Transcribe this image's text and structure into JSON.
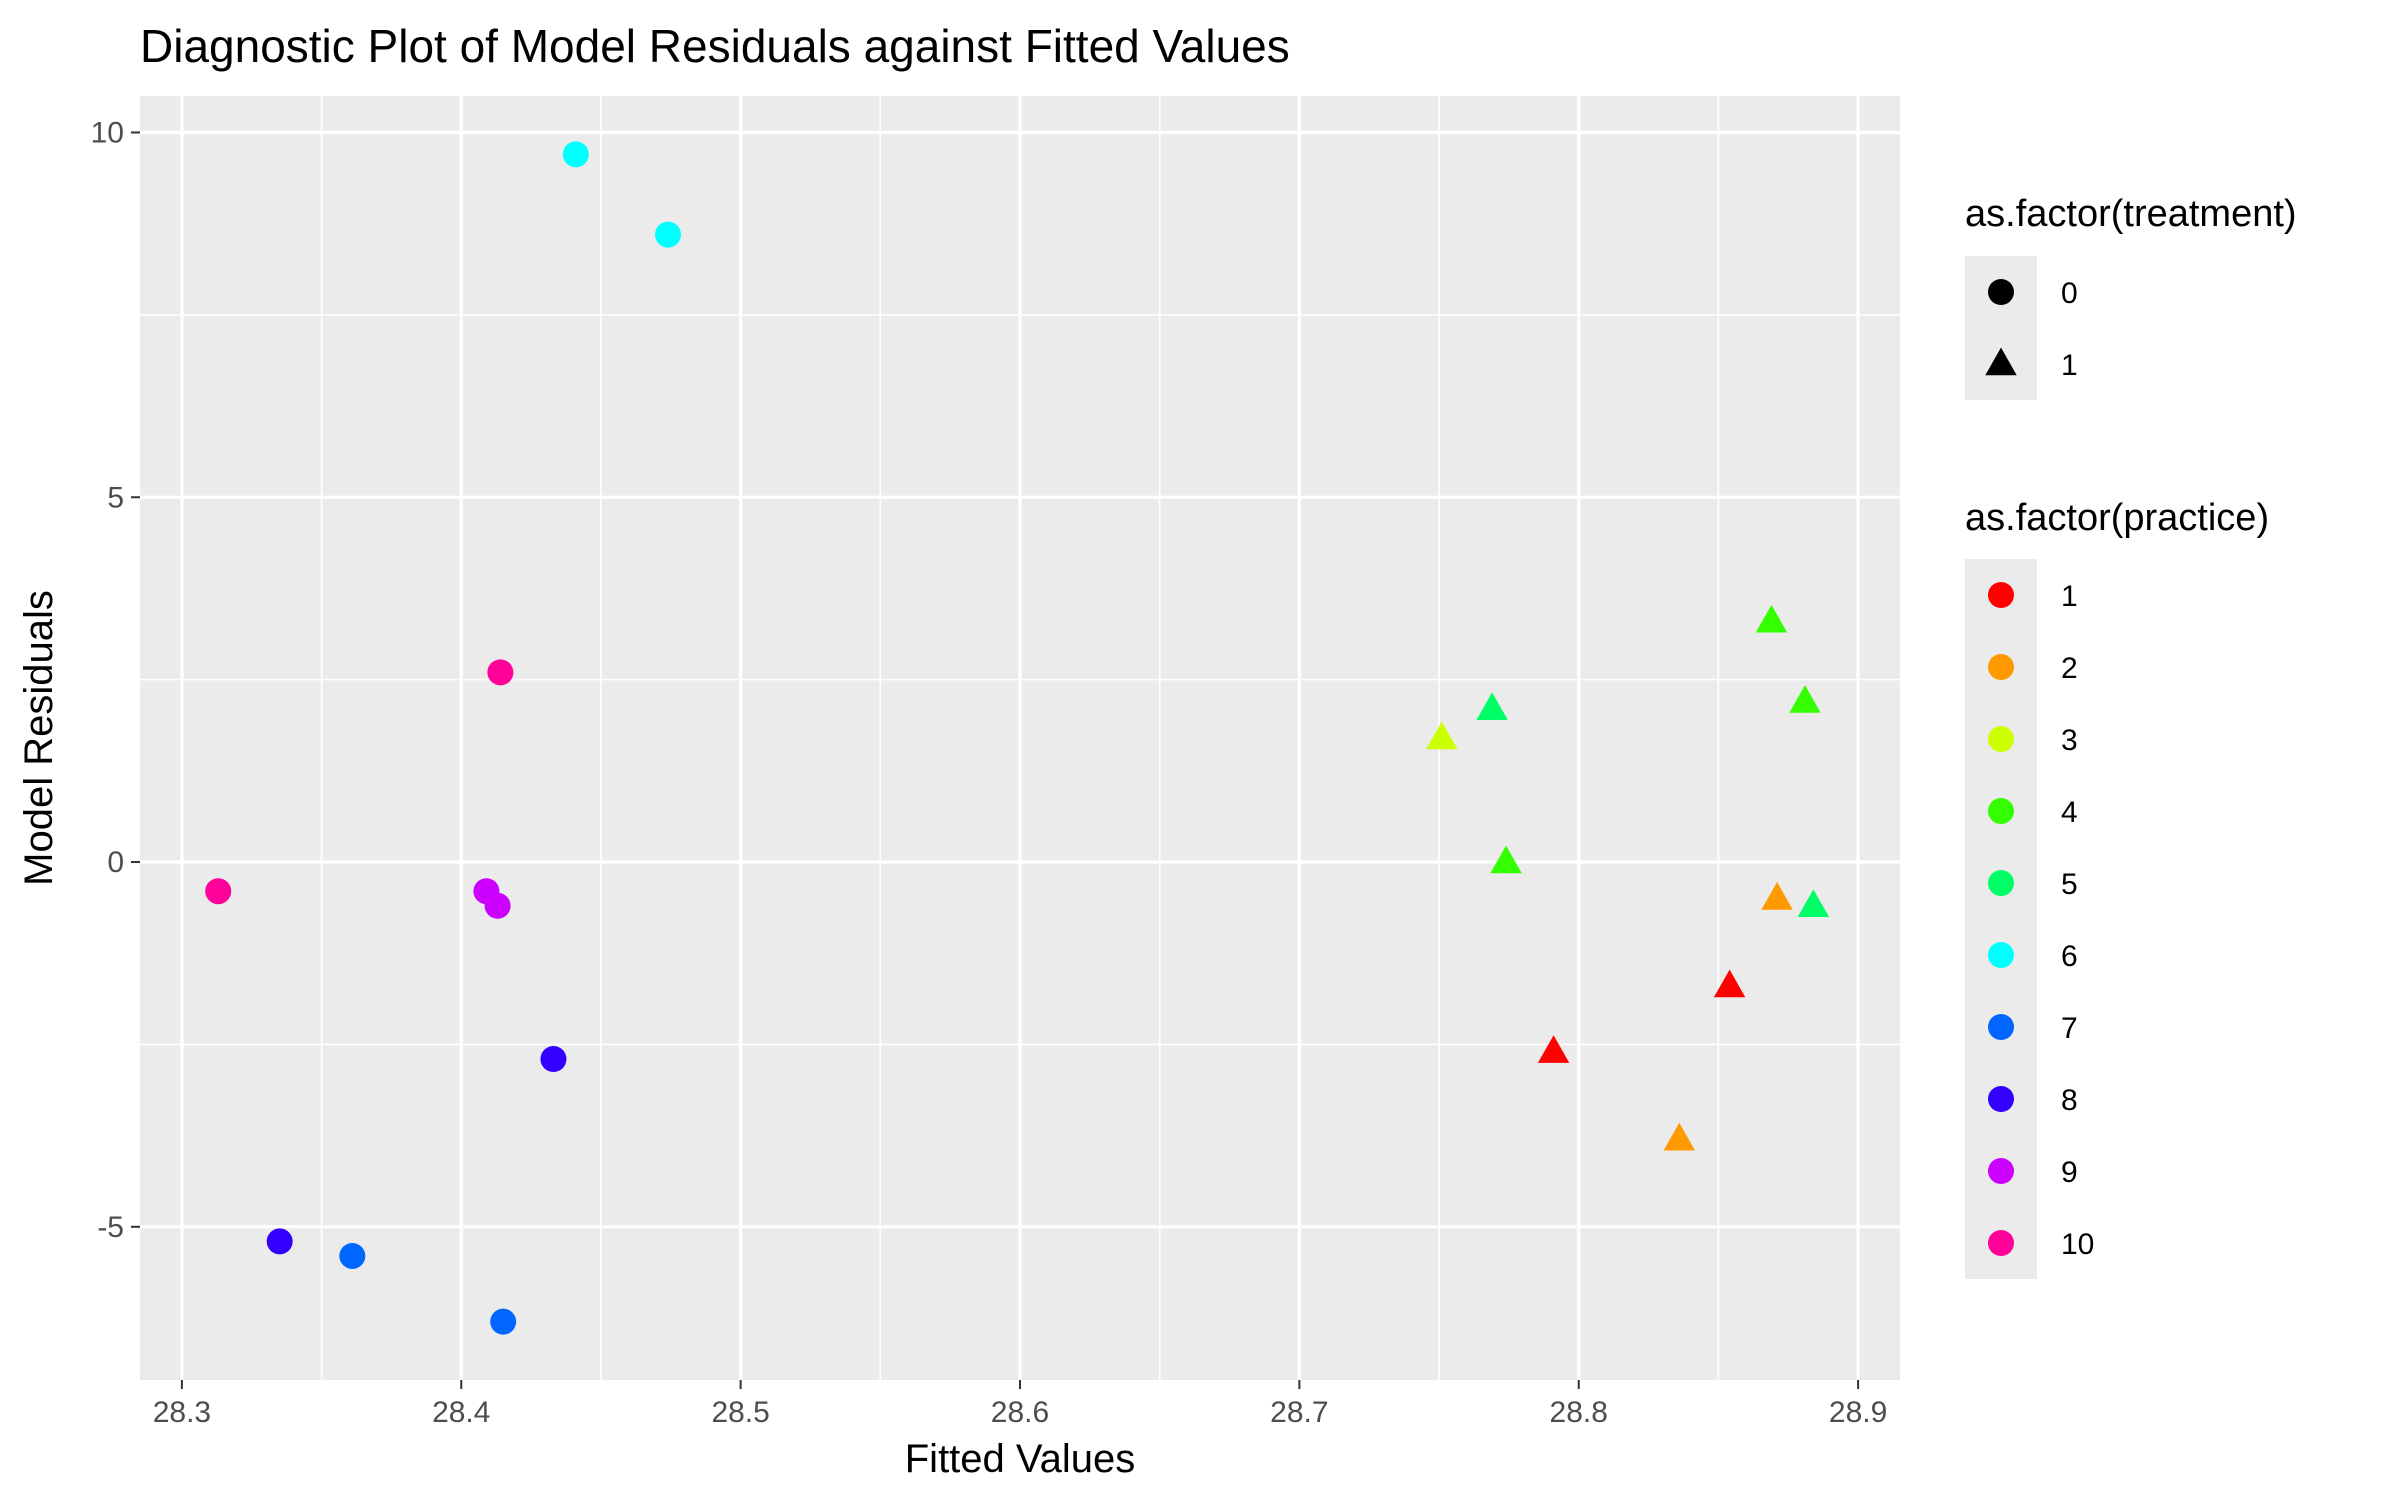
{
  "chart_data": {
    "type": "scatter",
    "title": "Diagnostic Plot of Model Residuals against Fitted Values",
    "xlabel": "Fitted Values",
    "ylabel": "Model Residuals",
    "xlim": [
      28.285,
      28.915
    ],
    "ylim": [
      -7.1,
      10.5
    ],
    "x_ticks": [
      28.3,
      28.4,
      28.5,
      28.6,
      28.7,
      28.8,
      28.9
    ],
    "x_tick_labels": [
      "28.3",
      "28.4",
      "28.5",
      "28.6",
      "28.7",
      "28.8",
      "28.9"
    ],
    "y_ticks": [
      -5,
      0,
      5,
      10
    ],
    "y_tick_labels": [
      "-5",
      "0",
      "5",
      "10"
    ],
    "grid": true,
    "panel_background": "#ebebeb",
    "grid_color": "#ffffff",
    "legend_placement": "right",
    "legend_shape": {
      "title": "as.factor(treatment)",
      "items": [
        {
          "label": "0",
          "shape": "circle"
        },
        {
          "label": "1",
          "shape": "triangle"
        }
      ]
    },
    "legend_color": {
      "title": "as.factor(practice)",
      "items": [
        {
          "label": "1",
          "color": "#FF0000"
        },
        {
          "label": "2",
          "color": "#FF9900"
        },
        {
          "label": "3",
          "color": "#CCFF00"
        },
        {
          "label": "4",
          "color": "#33FF00"
        },
        {
          "label": "5",
          "color": "#00FF66"
        },
        {
          "label": "6",
          "color": "#00FFFF"
        },
        {
          "label": "7",
          "color": "#0066FF"
        },
        {
          "label": "8",
          "color": "#3300FF"
        },
        {
          "label": "9",
          "color": "#CC00FF"
        },
        {
          "label": "10",
          "color": "#FF0099"
        }
      ]
    },
    "points": [
      {
        "x": 28.441,
        "y": 9.7,
        "treatment": "0",
        "practice": "6"
      },
      {
        "x": 28.474,
        "y": 8.6,
        "treatment": "0",
        "practice": "6"
      },
      {
        "x": 28.414,
        "y": 2.6,
        "treatment": "0",
        "practice": "10"
      },
      {
        "x": 28.313,
        "y": -0.4,
        "treatment": "0",
        "practice": "10"
      },
      {
        "x": 28.409,
        "y": -0.4,
        "treatment": "0",
        "practice": "9"
      },
      {
        "x": 28.413,
        "y": -0.6,
        "treatment": "0",
        "practice": "9"
      },
      {
        "x": 28.433,
        "y": -2.7,
        "treatment": "0",
        "practice": "8"
      },
      {
        "x": 28.335,
        "y": -5.2,
        "treatment": "0",
        "practice": "8"
      },
      {
        "x": 28.361,
        "y": -5.4,
        "treatment": "0",
        "practice": "7"
      },
      {
        "x": 28.415,
        "y": -6.3,
        "treatment": "0",
        "practice": "7"
      },
      {
        "x": 28.869,
        "y": 3.3,
        "treatment": "1",
        "practice": "4"
      },
      {
        "x": 28.881,
        "y": 2.2,
        "treatment": "1",
        "practice": "4"
      },
      {
        "x": 28.769,
        "y": 2.1,
        "treatment": "1",
        "practice": "5"
      },
      {
        "x": 28.751,
        "y": 1.7,
        "treatment": "1",
        "practice": "3"
      },
      {
        "x": 28.774,
        "y": 0.0,
        "treatment": "1",
        "practice": "4"
      },
      {
        "x": 28.871,
        "y": -0.5,
        "treatment": "1",
        "practice": "2"
      },
      {
        "x": 28.884,
        "y": -0.6,
        "treatment": "1",
        "practice": "5"
      },
      {
        "x": 28.854,
        "y": -1.7,
        "treatment": "1",
        "practice": "1"
      },
      {
        "x": 28.791,
        "y": -2.6,
        "treatment": "1",
        "practice": "1"
      },
      {
        "x": 28.836,
        "y": -3.8,
        "treatment": "1",
        "practice": "2"
      }
    ]
  }
}
